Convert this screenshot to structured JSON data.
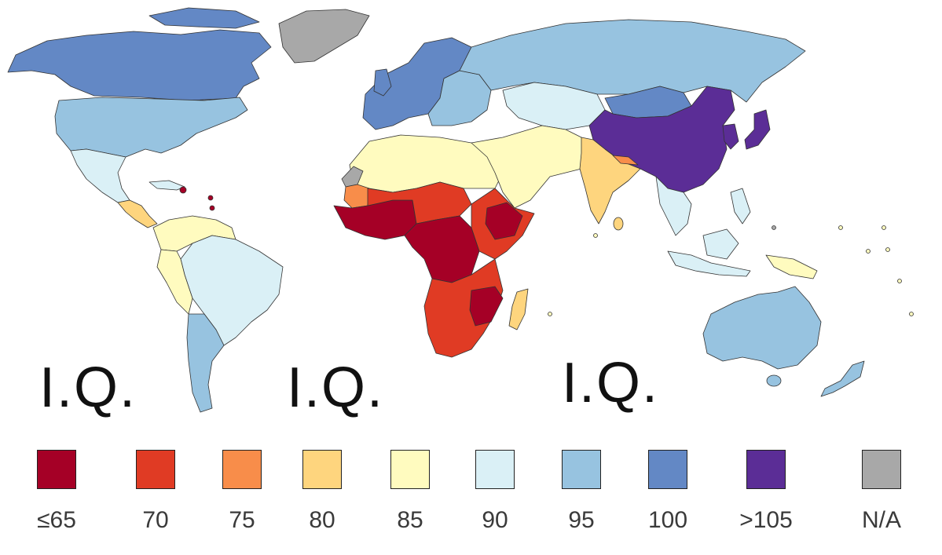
{
  "overlay_text": [
    "I.Q.",
    "I.Q.",
    "I.Q."
  ],
  "legend": [
    {
      "label": "≤65",
      "color": "#a50026"
    },
    {
      "label": "70",
      "color": "#e03b24"
    },
    {
      "label": "75",
      "color": "#f88d4a"
    },
    {
      "label": "80",
      "color": "#fed57e"
    },
    {
      "label": "85",
      "color": "#fffbbf"
    },
    {
      "label": "90",
      "color": "#daf0f6"
    },
    {
      "label": "95",
      "color": "#97c3e0"
    },
    {
      "label": "100",
      "color": "#6388c5"
    },
    {
      "label": ">105",
      "color": "#5b2d96"
    },
    {
      "label": "N/A",
      "color": "#a8a8a8"
    }
  ],
  "regions": [
    {
      "name": "north-america-north",
      "class": "100"
    },
    {
      "name": "united-states",
      "class": "95"
    },
    {
      "name": "greenland",
      "class": "N/A"
    },
    {
      "name": "mexico",
      "class": "90"
    },
    {
      "name": "central-america",
      "class": "80"
    },
    {
      "name": "south-america-north",
      "class": "85"
    },
    {
      "name": "brazil",
      "class": "90"
    },
    {
      "name": "andes-west",
      "class": "85"
    },
    {
      "name": "southern-cone",
      "class": "95"
    },
    {
      "name": "europe-west",
      "class": "100"
    },
    {
      "name": "europe-east",
      "class": "95"
    },
    {
      "name": "russia",
      "class": "95"
    },
    {
      "name": "central-asia",
      "class": "90"
    },
    {
      "name": "china",
      "class": ">105"
    },
    {
      "name": "mongolia",
      "class": "100"
    },
    {
      "name": "japan",
      "class": ">105"
    },
    {
      "name": "north-africa",
      "class": "85"
    },
    {
      "name": "middle-east",
      "class": "85"
    },
    {
      "name": "india",
      "class": "80"
    },
    {
      "name": "southeast-asia",
      "class": "90"
    },
    {
      "name": "west-africa",
      "class": "≤65"
    },
    {
      "name": "central-africa",
      "class": "≤65"
    },
    {
      "name": "east-africa",
      "class": "70"
    },
    {
      "name": "southern-africa",
      "class": "70"
    },
    {
      "name": "madagascar",
      "class": "80"
    },
    {
      "name": "australia",
      "class": "95"
    },
    {
      "name": "new-zealand",
      "class": "95"
    },
    {
      "name": "indonesia",
      "class": "90"
    },
    {
      "name": "papua-new-guinea",
      "class": "85"
    }
  ]
}
